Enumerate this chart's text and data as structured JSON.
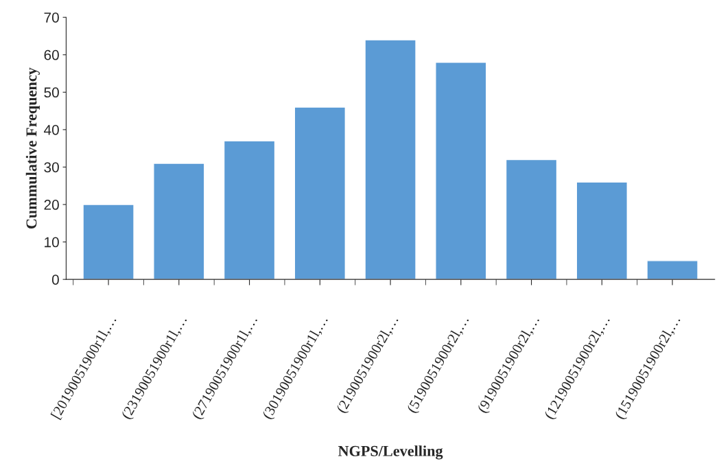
{
  "chart_data": {
    "type": "bar",
    "xlabel": "NGPS/Levelling",
    "ylabel": "Cummulative Frequency",
    "categories": [
      "[20190051900r1l,…",
      "(23190051900r1l,…",
      "(27190051900r1l,…",
      "(30190051900r1l,…",
      "(2190051900r2l,…",
      "(5190051900r2l,…",
      "(9190051900r2l,…",
      "(12190051900r2l,…",
      "(15190051900r2l,…"
    ],
    "values": [
      20,
      31,
      37,
      46,
      64,
      58,
      32,
      26,
      5
    ],
    "color": "#5b9bd5",
    "ylim": [
      0,
      70
    ],
    "yticks": [
      0,
      10,
      20,
      30,
      40,
      50,
      60,
      70
    ]
  }
}
